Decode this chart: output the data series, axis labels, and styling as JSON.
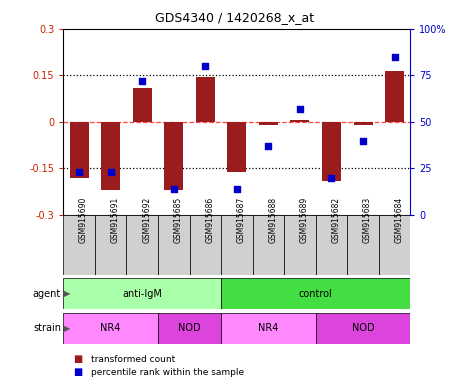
{
  "title": "GDS4340 / 1420268_x_at",
  "samples": [
    "GSM915690",
    "GSM915691",
    "GSM915692",
    "GSM915685",
    "GSM915686",
    "GSM915687",
    "GSM915688",
    "GSM915689",
    "GSM915682",
    "GSM915683",
    "GSM915684"
  ],
  "bar_values": [
    -0.18,
    -0.22,
    0.11,
    -0.22,
    0.145,
    -0.16,
    -0.01,
    0.005,
    -0.19,
    -0.01,
    0.165
  ],
  "scatter_values": [
    23,
    23,
    72,
    14,
    80,
    14,
    37,
    57,
    20,
    40,
    85
  ],
  "bar_color": "#9B1C1C",
  "scatter_color": "#0000CC",
  "ylim_left": [
    -0.3,
    0.3
  ],
  "ylim_right": [
    0,
    100
  ],
  "yticks_left": [
    -0.3,
    -0.15,
    0,
    0.15,
    0.3
  ],
  "yticks_right": [
    0,
    25,
    50,
    75,
    100
  ],
  "ytick_labels_right": [
    "0",
    "25",
    "50",
    "75",
    "100%"
  ],
  "agent_groups": [
    {
      "label": "anti-IgM",
      "start": 0,
      "end": 5,
      "color": "#AAFFAA"
    },
    {
      "label": "control",
      "start": 5,
      "end": 11,
      "color": "#44DD44"
    }
  ],
  "strain_groups": [
    {
      "label": "NR4",
      "start": 0,
      "end": 3,
      "color": "#FF88FF"
    },
    {
      "label": "NOD",
      "start": 3,
      "end": 5,
      "color": "#DD44DD"
    },
    {
      "label": "NR4",
      "start": 5,
      "end": 8,
      "color": "#FF88FF"
    },
    {
      "label": "NOD",
      "start": 8,
      "end": 11,
      "color": "#DD44DD"
    }
  ],
  "legend_items": [
    {
      "label": "transformed count",
      "color": "#9B1C1C"
    },
    {
      "label": "percentile rank within the sample",
      "color": "#0000CC"
    }
  ],
  "bar_width": 0.6,
  "background_color": "#ffffff",
  "tick_label_color_left": "#CC2200",
  "tick_label_color_right": "#0000CC",
  "sample_box_color": "#D0D0D0",
  "hline_zero_color": "#FF4444",
  "hline_dotted_color": "#000000"
}
